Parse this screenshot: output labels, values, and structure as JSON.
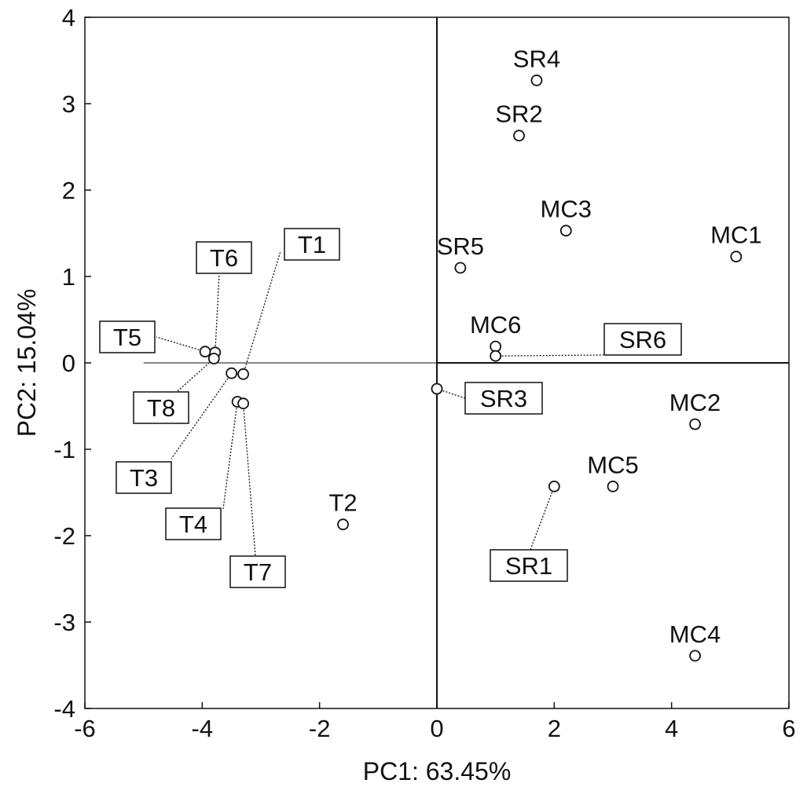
{
  "chart_data": {
    "type": "scatter",
    "xlabel": "PC1: 63.45%",
    "ylabel": "PC2: 15.04%",
    "xlim": [
      -6,
      6
    ],
    "ylim": [
      -4,
      4
    ],
    "xticks": [
      "-6",
      "-4",
      "-2",
      "0",
      "2",
      "4",
      "6"
    ],
    "yticks": [
      "4",
      "3",
      "2",
      "1",
      "0",
      "-1",
      "-2",
      "-3",
      "-4"
    ],
    "grid": false,
    "reference_lines": [
      "x = 0",
      "y = 0"
    ],
    "points": [
      {
        "label": "SR4",
        "x": 1.7,
        "y": 3.27,
        "boxed": false
      },
      {
        "label": "SR2",
        "x": 1.4,
        "y": 2.63,
        "boxed": false
      },
      {
        "label": "MC3",
        "x": 2.2,
        "y": 1.53,
        "boxed": false
      },
      {
        "label": "MC1",
        "x": 5.1,
        "y": 1.23,
        "boxed": false
      },
      {
        "label": "SR5",
        "x": 0.4,
        "y": 1.1,
        "boxed": false
      },
      {
        "label": "MC6",
        "x": 1.0,
        "y": 0.19,
        "boxed": false
      },
      {
        "label": "SR6",
        "x": 1.0,
        "y": 0.08,
        "boxed": true
      },
      {
        "label": "SR3",
        "x": 0.0,
        "y": -0.3,
        "boxed": true
      },
      {
        "label": "MC2",
        "x": 4.4,
        "y": -0.71,
        "boxed": false
      },
      {
        "label": "MC5",
        "x": 3.0,
        "y": -1.43,
        "boxed": false
      },
      {
        "label": "SR1",
        "x": 2.0,
        "y": -1.43,
        "boxed": true
      },
      {
        "label": "MC4",
        "x": 4.4,
        "y": -3.39,
        "boxed": false
      },
      {
        "label": "T2",
        "x": -1.6,
        "y": -1.87,
        "boxed": false
      },
      {
        "label": "T5",
        "x": -3.95,
        "y": 0.13,
        "boxed": true
      },
      {
        "label": "T6",
        "x": -3.78,
        "y": 0.12,
        "boxed": true
      },
      {
        "label": "T8",
        "x": -3.8,
        "y": 0.05,
        "boxed": true
      },
      {
        "label": "T1",
        "x": -3.3,
        "y": -0.13,
        "boxed": true
      },
      {
        "label": "T3",
        "x": -3.5,
        "y": -0.12,
        "boxed": true
      },
      {
        "label": "T4",
        "x": -3.4,
        "y": -0.45,
        "boxed": true
      },
      {
        "label": "T7",
        "x": -3.3,
        "y": -0.47,
        "boxed": true
      }
    ]
  }
}
